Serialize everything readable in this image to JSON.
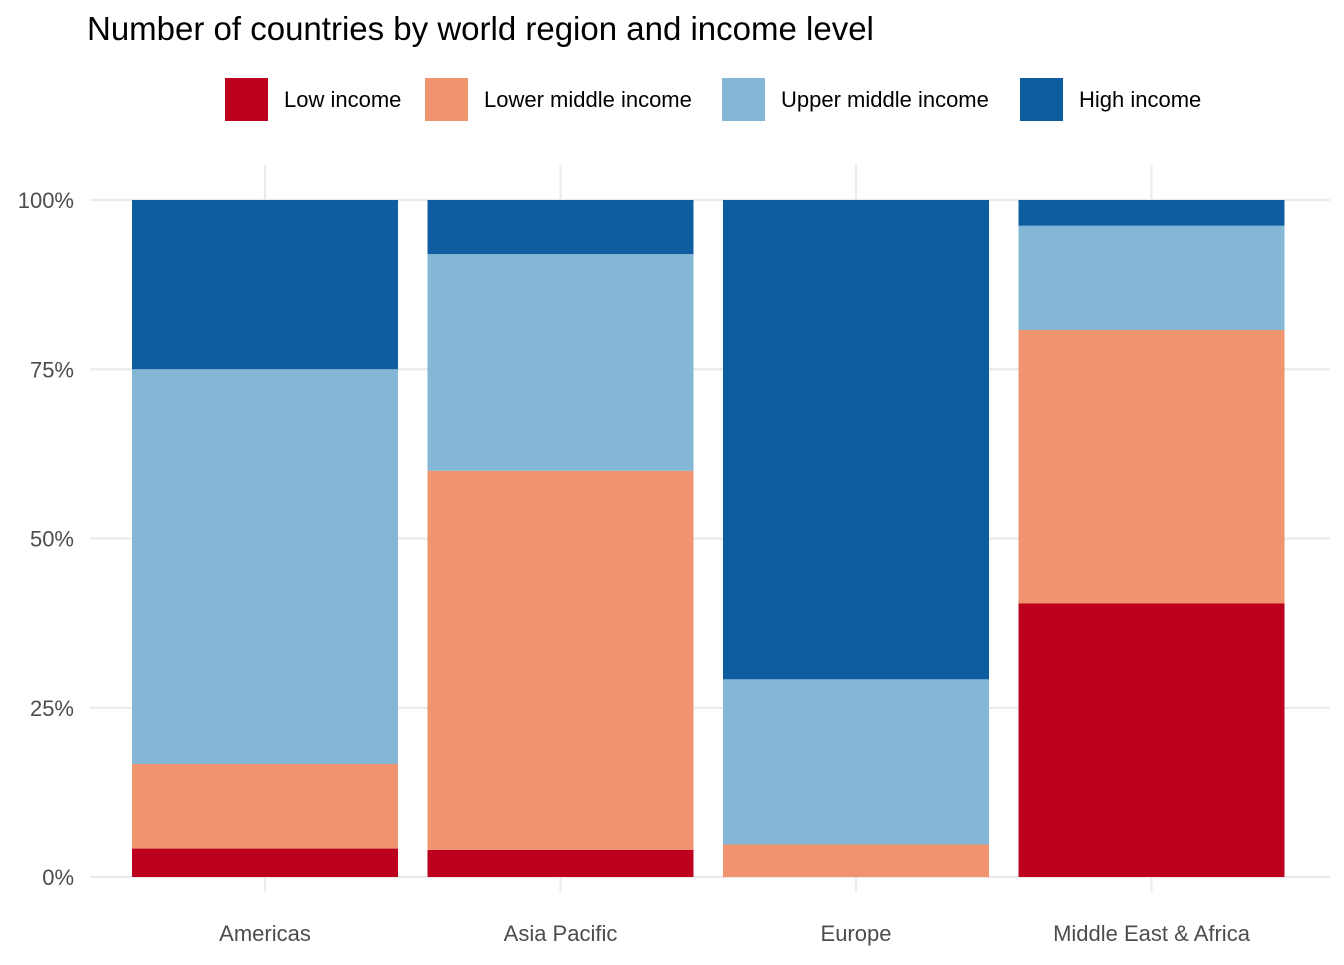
{
  "chart_data": {
    "type": "bar",
    "stacked": true,
    "normalized": true,
    "title": "Number of countries by world region and income level",
    "xlabel": "",
    "ylabel": "",
    "categories": [
      "Americas",
      "Asia Pacific",
      "Europe",
      "Middle East & Africa"
    ],
    "series": [
      {
        "name": "Low income",
        "color": "#BC001D",
        "values": [
          4.2,
          4.0,
          0.0,
          40.4
        ]
      },
      {
        "name": "Lower middle income",
        "color": "#EF946F",
        "values": [
          12.5,
          56.0,
          4.8,
          40.4
        ]
      },
      {
        "name": "Upper middle income",
        "color": "#84B7D6",
        "values": [
          58.3,
          32.0,
          24.4,
          15.4
        ]
      },
      {
        "name": "High income",
        "color": "#0E5DA0",
        "values": [
          25.0,
          8.0,
          70.8,
          3.8
        ]
      }
    ],
    "ylim": [
      0,
      100
    ],
    "yticks": [
      0,
      25,
      50,
      75,
      100
    ],
    "ytick_labels": [
      "0%",
      "25%",
      "50%",
      "75%",
      "100%"
    ],
    "grid": true,
    "legend_position": "top"
  }
}
